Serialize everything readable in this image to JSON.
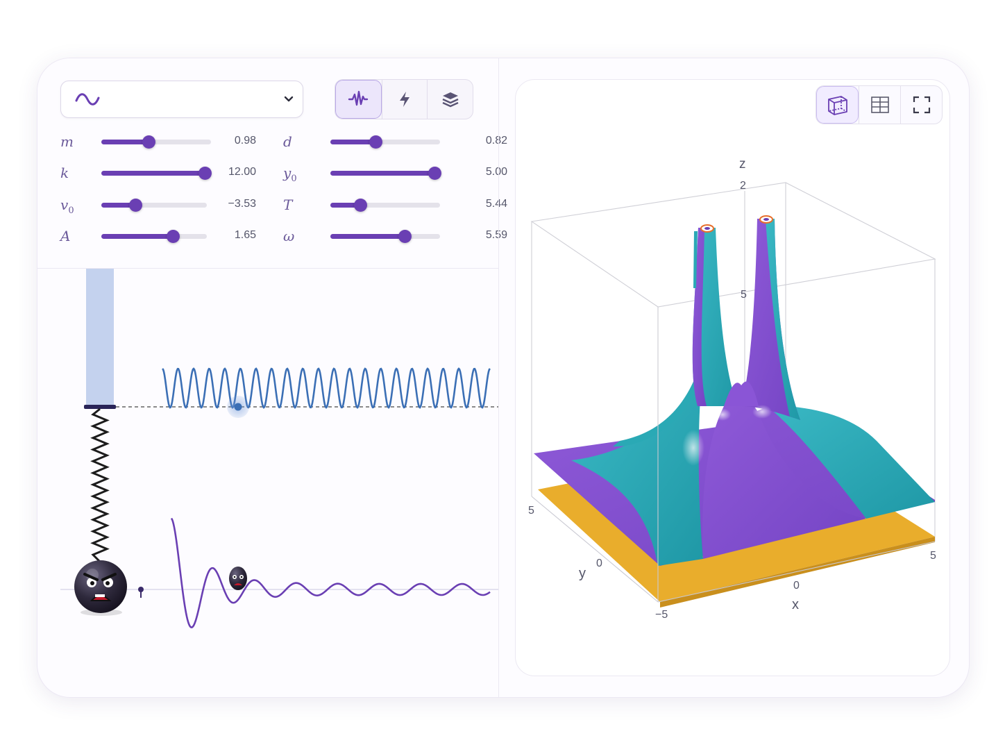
{
  "colors": {
    "accent": "#6a3fb3",
    "surface_teal": "#2fb0bd",
    "surface_purple": "#8a55d6",
    "plane_yellow": "#e9ad2c",
    "wave_blue": "#3b6fb5",
    "wave_purple": "#6a3fb3"
  },
  "preset": {
    "icon": "sine-wave-icon",
    "dropdown_icon": "chevron-down-icon"
  },
  "modes": [
    {
      "icon": "waveform-icon",
      "active": true
    },
    {
      "icon": "lightning-icon",
      "active": false
    },
    {
      "icon": "layers-icon",
      "active": false
    }
  ],
  "parameters": [
    {
      "symbol": "m",
      "sub": "",
      "value": "0.98",
      "fraction": 0.43
    },
    {
      "symbol": "k",
      "sub": "",
      "value": "12.00",
      "fraction": 0.98
    },
    {
      "symbol": "v",
      "sub": "0",
      "value": "−3.53",
      "fraction": 0.32
    },
    {
      "symbol": "A",
      "sub": "",
      "value": "1.65",
      "fraction": 0.68
    },
    {
      "symbol": "d",
      "sub": "",
      "value": "0.82",
      "fraction": 0.41
    },
    {
      "symbol": "y",
      "sub": "0",
      "value": "5.00",
      "fraction": 0.95
    },
    {
      "symbol": "T",
      "sub": "",
      "value": "5.44",
      "fraction": 0.27
    },
    {
      "symbol": "ω",
      "sub": "",
      "value": "5.59",
      "fraction": 0.68
    }
  ],
  "view_buttons": [
    {
      "icon": "cube-3d-icon",
      "active": true
    },
    {
      "icon": "grid-table-icon",
      "active": false
    },
    {
      "icon": "fullscreen-icon",
      "active": false
    }
  ],
  "plot3d": {
    "z_label": "z",
    "x_label": "x",
    "y_label": "y",
    "z_ticks": [
      "2",
      "5"
    ],
    "x_ticks": [
      "−5",
      "0",
      "5"
    ],
    "y_ticks": [
      "5",
      "0"
    ]
  }
}
